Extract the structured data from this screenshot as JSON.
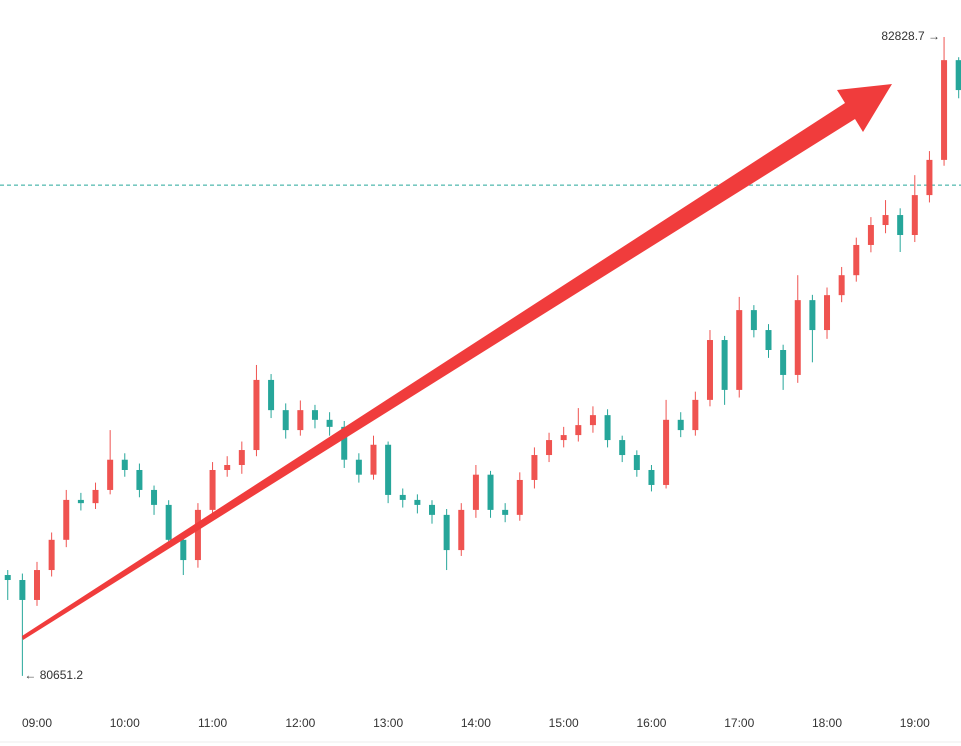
{
  "chart_data": {
    "type": "candlestick",
    "categories": [
      null,
      null,
      "09:00",
      null,
      null,
      null,
      null,
      null,
      "10:00",
      null,
      null,
      null,
      null,
      null,
      "11:00",
      null,
      null,
      null,
      null,
      null,
      "12:00",
      null,
      null,
      null,
      null,
      null,
      "13:00",
      null,
      null,
      null,
      null,
      null,
      "14:00",
      null,
      null,
      null,
      null,
      null,
      "15:00",
      null,
      null,
      null,
      null,
      null,
      "16:00",
      null,
      null,
      null,
      null,
      null,
      "17:00",
      null,
      null,
      null,
      null,
      null,
      "18:00",
      null,
      null,
      null,
      null,
      null,
      "19:00",
      null,
      null,
      null
    ],
    "open": [
      80995,
      80978,
      80910,
      81012,
      81115,
      81251,
      81240,
      81285,
      81388,
      81353,
      81285,
      81234,
      81115,
      81046,
      81217,
      81353,
      81370,
      81421,
      81660,
      81557,
      81489,
      81557,
      81524,
      81500,
      81388,
      81337,
      81439,
      81268,
      81251,
      81234,
      81200,
      81080,
      81217,
      81337,
      81217,
      81200,
      81319,
      81404,
      81455,
      81472,
      81506,
      81540,
      81455,
      81404,
      81353,
      81302,
      81524,
      81489,
      81592,
      81796,
      81626,
      81898,
      81830,
      81762,
      81677,
      81932,
      81830,
      81949,
      82017,
      82120,
      82188,
      82222,
      82154,
      82290,
      82410,
      82750
    ],
    "high": [
      81012,
      81000,
      81040,
      81140,
      81285,
      81275,
      81310,
      81489,
      81410,
      81375,
      81300,
      81250,
      81130,
      81240,
      81380,
      81400,
      81450,
      81711,
      81680,
      81580,
      81590,
      81575,
      81550,
      81520,
      81410,
      81470,
      81450,
      81290,
      81270,
      81250,
      81220,
      81240,
      81370,
      81350,
      81240,
      81345,
      81430,
      81480,
      81500,
      81564,
      81570,
      81560,
      81470,
      81420,
      81370,
      81592,
      81550,
      81620,
      81830,
      81810,
      81943,
      81915,
      81850,
      81780,
      82017,
      81950,
      81975,
      82045,
      82145,
      82215,
      82273,
      82245,
      82358,
      82440,
      82828.7,
      82760
    ],
    "low": [
      80910,
      80651.2,
      80890,
      80990,
      81090,
      81215,
      81220,
      81270,
      81330,
      81260,
      81200,
      81090,
      80995,
      81020,
      81190,
      81330,
      81340,
      81400,
      81530,
      81460,
      81470,
      81495,
      81470,
      81360,
      81310,
      81320,
      81240,
      81225,
      81205,
      81170,
      81012,
      81060,
      81190,
      81190,
      81175,
      81180,
      81290,
      81380,
      81430,
      81450,
      81480,
      81430,
      81380,
      81330,
      81280,
      81290,
      81465,
      81470,
      81570,
      81575,
      81600,
      81805,
      81735,
      81626,
      81650,
      81720,
      81800,
      81925,
      81995,
      82095,
      82160,
      82096,
      82130,
      82265,
      82390,
      82620
    ],
    "close": [
      80978,
      80910,
      81012,
      81115,
      81251,
      81240,
      81285,
      81388,
      81353,
      81285,
      81234,
      81115,
      81046,
      81217,
      81353,
      81370,
      81421,
      81660,
      81557,
      81489,
      81557,
      81524,
      81500,
      81388,
      81337,
      81439,
      81268,
      81251,
      81234,
      81200,
      81080,
      81217,
      81337,
      81217,
      81200,
      81319,
      81404,
      81455,
      81472,
      81506,
      81540,
      81455,
      81404,
      81353,
      81302,
      81524,
      81489,
      81592,
      81796,
      81626,
      81898,
      81830,
      81762,
      81677,
      81932,
      81830,
      81949,
      82017,
      82120,
      82188,
      82222,
      82154,
      82290,
      82410,
      82750,
      82648
    ],
    "up_color": "#ef5350",
    "down_color": "#26a69a",
    "ylim": [
      80569,
      82955
    ],
    "ref_line": 82324,
    "high_label": "82828.7 →",
    "low_label": "← 80651.2"
  }
}
